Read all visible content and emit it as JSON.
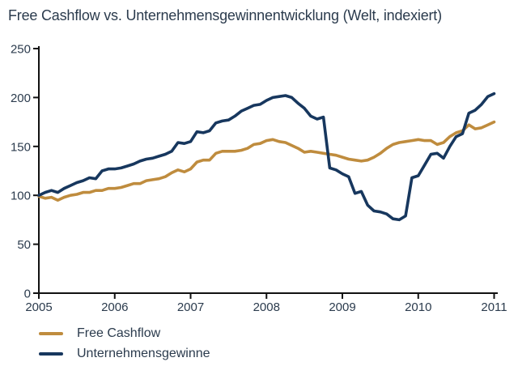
{
  "title": "Free Cashflow vs. Unternehmensgewinnentwicklung (Welt, indexiert)",
  "colors": {
    "cashflow": "#BF8C3E",
    "profits": "#17375E",
    "text": "#2B3B4D",
    "axis": "#111111",
    "background": "#FFFFFF"
  },
  "legend": {
    "items": [
      {
        "label": "Free Cashflow",
        "color_key": "cashflow"
      },
      {
        "label": "Unternehmensgewinne",
        "color_key": "profits"
      }
    ]
  },
  "chart_data": {
    "type": "line",
    "title": "Free Cashflow vs. Unternehmensgewinnentwicklung (Welt, indexiert)",
    "xlabel": "",
    "ylabel": "",
    "xlim": [
      2005,
      2011
    ],
    "ylim": [
      0,
      250
    ],
    "x_ticks": [
      2005,
      2006,
      2007,
      2008,
      2009,
      2010,
      2011
    ],
    "y_ticks": [
      0,
      50,
      100,
      150,
      200,
      250
    ],
    "grid": false,
    "legend_position": "bottom-left",
    "x_unit": "monthly, fraction of year from 2005",
    "series": [
      {
        "name": "Free Cashflow",
        "color_key": "cashflow",
        "values": [
          99,
          97,
          98,
          95,
          98,
          100,
          101,
          103,
          103,
          105,
          105,
          107,
          107,
          108,
          110,
          112,
          112,
          115,
          116,
          117,
          119,
          123,
          126,
          124,
          127,
          134,
          136,
          136,
          143,
          145,
          145,
          145,
          146,
          148,
          152,
          153,
          156,
          157,
          155,
          154,
          151,
          148,
          144,
          145,
          144,
          143,
          142,
          141,
          139,
          137,
          136,
          135,
          136,
          139,
          143,
          148,
          152,
          154,
          155,
          156,
          157,
          156,
          156,
          152,
          154,
          160,
          164,
          166,
          172,
          168,
          169,
          172,
          175
        ]
      },
      {
        "name": "Unternehmensgewinne",
        "color_key": "profits",
        "values": [
          100,
          103,
          105,
          103,
          107,
          110,
          113,
          115,
          118,
          117,
          125,
          127,
          127,
          128,
          130,
          132,
          135,
          137,
          138,
          140,
          142,
          145,
          154,
          153,
          155,
          165,
          164,
          166,
          174,
          176,
          177,
          181,
          186,
          189,
          192,
          193,
          197,
          200,
          201,
          202,
          200,
          194,
          189,
          181,
          178,
          180,
          128,
          126,
          122,
          119,
          102,
          104,
          90,
          84,
          83,
          81,
          76,
          75,
          79,
          118,
          120,
          131,
          142,
          143,
          138,
          150,
          160,
          163,
          184,
          187,
          193,
          201,
          204
        ]
      }
    ]
  }
}
